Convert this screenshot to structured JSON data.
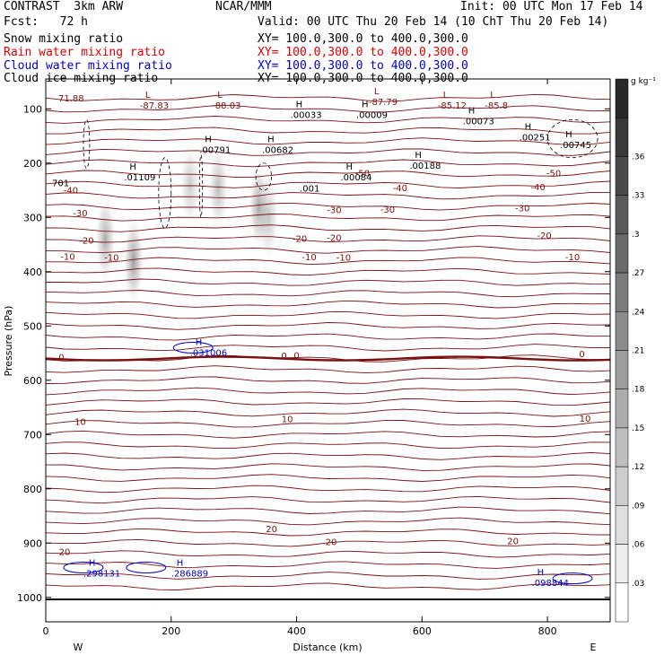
{
  "header": {
    "model": "CONTRAST  3km ARW",
    "center": "NCAR/MMM",
    "init": "Init: 00 UTC Mon 17 Feb 14",
    "fcst": "Fcst:   72 h",
    "valid": "Valid: 00 UTC Thu 20 Feb 14 (10 ChT Thu 20 Feb 14)",
    "fields": [
      {
        "label": "Snow mixing ratio",
        "xy": "XY= 100.0,300.0 to 400.0,300.0",
        "color": "#000000"
      },
      {
        "label": "Rain water mixing ratio",
        "xy": "XY= 100.0,300.0 to 400.0,300.0",
        "color": "#e00000"
      },
      {
        "label": "Cloud water mixing ratio",
        "xy": "XY= 100.0,300.0 to 400.0,300.0",
        "color": "#0000cc"
      },
      {
        "label": "Cloud ice mixing ratio",
        "xy": "XY= 100.0,300.0 to 400.0,300.0",
        "color": "#000000"
      }
    ]
  },
  "chart_data": {
    "type": "cross-section",
    "xlabel": "Distance (km)",
    "ylabel": "Pressure (hPa)",
    "xlim": [
      0,
      900
    ],
    "ylim": [
      1045,
      45
    ],
    "x_ticks": [
      0,
      200,
      400,
      600,
      800
    ],
    "y_ticks": [
      100,
      200,
      300,
      400,
      500,
      600,
      700,
      800,
      900,
      1000
    ],
    "x_end_labels": {
      "left": "W",
      "right": "E"
    },
    "temperature_color": "#7a1010",
    "temperature_contours": [
      {
        "value": 20,
        "labels": [
          {
            "text": "20",
            "x": 30,
            "p": 922
          },
          {
            "text": "20",
            "x": 455,
            "p": 904
          },
          {
            "text": "20",
            "x": 745,
            "p": 902
          },
          {
            "text": "20",
            "x": 360,
            "p": 880
          }
        ]
      },
      {
        "value": 10,
        "labels": [
          {
            "text": "10",
            "x": 55,
            "p": 682
          },
          {
            "text": "10",
            "x": 385,
            "p": 677
          },
          {
            "text": "10",
            "x": 860,
            "p": 676
          }
        ]
      },
      {
        "value": 0,
        "bold": true,
        "labels": [
          {
            "text": "0",
            "x": 25,
            "p": 563
          },
          {
            "text": "0",
            "x": 400,
            "p": 560
          },
          {
            "text": "0",
            "x": 380,
            "p": 561
          },
          {
            "text": "0",
            "x": 855,
            "p": 557
          }
        ]
      },
      {
        "value": -10,
        "labels": [
          {
            "text": "-10",
            "x": 35,
            "p": 378
          },
          {
            "text": "-10",
            "x": 105,
            "p": 380
          },
          {
            "text": "-10",
            "x": 420,
            "p": 379
          },
          {
            "text": "-10",
            "x": 475,
            "p": 380
          },
          {
            "text": "-10",
            "x": 840,
            "p": 379
          }
        ]
      },
      {
        "value": -20,
        "labels": [
          {
            "text": "-20",
            "x": 65,
            "p": 348
          },
          {
            "text": "-20",
            "x": 405,
            "p": 345
          },
          {
            "text": "-20",
            "x": 460,
            "p": 343
          },
          {
            "text": "-20",
            "x": 795,
            "p": 339
          }
        ]
      },
      {
        "value": -30,
        "labels": [
          {
            "text": "-30",
            "x": 55,
            "p": 298
          },
          {
            "text": "-30",
            "x": 460,
            "p": 292
          },
          {
            "text": "-30",
            "x": 545,
            "p": 291
          },
          {
            "text": "-30",
            "x": 760,
            "p": 289
          }
        ]
      },
      {
        "value": -40,
        "labels": [
          {
            "text": "-40",
            "x": 40,
            "p": 256
          },
          {
            "text": "-40",
            "x": 565,
            "p": 252
          },
          {
            "text": "-40",
            "x": 785,
            "p": 250
          }
        ]
      },
      {
        "value": -50,
        "labels": [
          {
            "text": "-50",
            "x": 505,
            "p": 224
          },
          {
            "text": "-50",
            "x": 810,
            "p": 224
          }
        ]
      }
    ],
    "extrema_labels": [
      {
        "kind": "L",
        "x": 150,
        "p": 83,
        "text": "-87.83",
        "color": "#7a1010"
      },
      {
        "kind": "L",
        "x": 265,
        "p": 83,
        "text": "-88.03",
        "color": "#7a1010"
      },
      {
        "kind": "L",
        "x": 515,
        "p": 76,
        "text": "-87.79",
        "color": "#7a1010"
      },
      {
        "kind": "L",
        "x": 625,
        "p": 83,
        "text": "-85.12",
        "color": "#7a1010"
      },
      {
        "kind": "L",
        "x": 700,
        "p": 83,
        "text": "-85.8",
        "color": "#7a1010"
      },
      {
        "kind": "",
        "x": 20,
        "p": 70,
        "text": "71.88",
        "color": "#7a1010"
      },
      {
        "kind": "H",
        "x": 390,
        "p": 100,
        "text": ".00033",
        "color": "#000000"
      },
      {
        "kind": "H",
        "x": 495,
        "p": 100,
        "text": ".00009",
        "color": "#000000"
      },
      {
        "kind": "H",
        "x": 665,
        "p": 112,
        "text": ".00073",
        "color": "#000000"
      },
      {
        "kind": "H",
        "x": 755,
        "p": 142,
        "text": ".00251",
        "color": "#000000"
      },
      {
        "kind": "H",
        "x": 820,
        "p": 156,
        "text": ".00745",
        "color": "#000000"
      },
      {
        "kind": "H",
        "x": 245,
        "p": 165,
        "text": ".00791",
        "color": "#000000"
      },
      {
        "kind": "H",
        "x": 345,
        "p": 165,
        "text": ".00682",
        "color": "#000000"
      },
      {
        "kind": "H",
        "x": 125,
        "p": 215,
        "text": ".01109",
        "color": "#000000"
      },
      {
        "kind": "H",
        "x": 470,
        "p": 215,
        "text": ".00084",
        "color": "#000000"
      },
      {
        "kind": "H",
        "x": 580,
        "p": 194,
        "text": ".00188",
        "color": "#000000"
      },
      {
        "kind": "",
        "x": 405,
        "p": 236,
        "text": ".001",
        "color": "#000000"
      },
      {
        "kind": "",
        "x": 10,
        "p": 226,
        "text": "701",
        "color": "#000000"
      },
      {
        "kind": "H",
        "x": 230,
        "p": 538,
        "text": ".031006",
        "color": "#0000cc"
      },
      {
        "kind": "H",
        "x": 60,
        "p": 945,
        "text": ".298131",
        "color": "#0000cc"
      },
      {
        "kind": "H",
        "x": 200,
        "p": 945,
        "text": ".286889",
        "color": "#0000cc"
      },
      {
        "kind": "H",
        "x": 775,
        "p": 962,
        "text": ".098844",
        "color": "#0000cc"
      }
    ],
    "snow_maxima": [
      {
        "x": 95,
        "p": 340,
        "intensity": 0.55
      },
      {
        "x": 140,
        "p": 380,
        "intensity": 0.65
      },
      {
        "x": 230,
        "p": 240,
        "intensity": 0.35
      },
      {
        "x": 275,
        "p": 245,
        "intensity": 0.45
      },
      {
        "x": 340,
        "p": 280,
        "intensity": 0.6
      },
      {
        "x": 355,
        "p": 300,
        "intensity": 0.4
      }
    ],
    "colorbar": {
      "unit": "g kg⁻¹",
      "ticks": [
        "",
        ".36",
        ".33",
        ".3",
        ".27",
        ".24",
        ".21",
        ".18",
        ".15",
        ".12",
        ".09",
        ".06",
        ".03",
        ""
      ]
    }
  }
}
